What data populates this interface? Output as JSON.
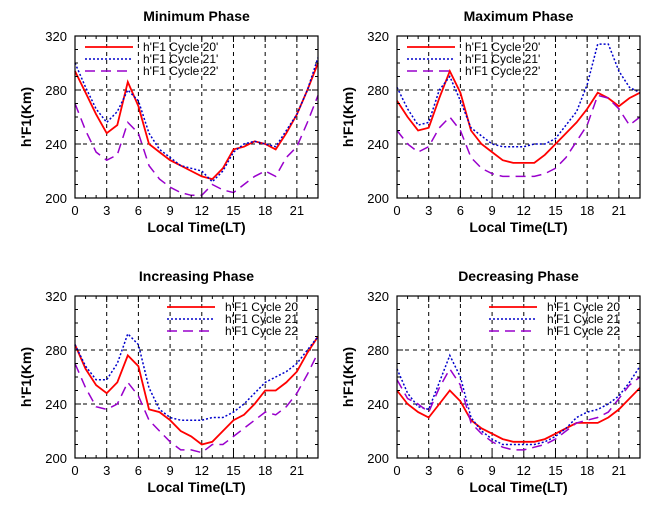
{
  "chart_data": [
    {
      "type": "line",
      "title": "Minimum Phase",
      "xlabel": "Local Time(LT)",
      "ylabel": "h'F1(Km)",
      "xlim": [
        0,
        23
      ],
      "ylim": [
        200,
        320
      ],
      "xticks": [
        0,
        3,
        6,
        9,
        12,
        15,
        18,
        21
      ],
      "yticks": [
        200,
        240,
        280,
        320
      ],
      "grid": true,
      "legend_position": "top-left",
      "x": [
        0,
        1,
        2,
        3,
        4,
        5,
        6,
        7,
        8,
        9,
        10,
        11,
        12,
        13,
        14,
        15,
        16,
        17,
        18,
        19,
        20,
        21,
        22,
        23
      ],
      "series": [
        {
          "name": "h'F1 Cycle 20'",
          "color": "#ff0000",
          "style": "solid",
          "values": [
            294,
            278,
            262,
            248,
            254,
            286,
            268,
            240,
            234,
            228,
            224,
            220,
            216,
            214,
            222,
            236,
            238,
            242,
            240,
            236,
            248,
            262,
            280,
            300
          ]
        },
        {
          "name": "h'F1 Cycle 21'",
          "color": "#0000cc",
          "style": "dotted",
          "values": [
            300,
            282,
            266,
            256,
            264,
            280,
            272,
            248,
            236,
            230,
            224,
            222,
            220,
            212,
            220,
            234,
            240,
            242,
            240,
            238,
            250,
            262,
            280,
            304
          ]
        },
        {
          "name": "h'F1 Cycle 22'",
          "color": "#9900cc",
          "style": "dashed",
          "values": [
            270,
            250,
            234,
            228,
            232,
            256,
            248,
            224,
            214,
            208,
            204,
            202,
            202,
            210,
            206,
            204,
            210,
            216,
            220,
            216,
            230,
            238,
            256,
            276
          ]
        }
      ]
    },
    {
      "type": "line",
      "title": "Maximum Phase",
      "xlabel": "Local Time(LT)",
      "ylabel": "h'F1(Km)",
      "xlim": [
        0,
        23
      ],
      "ylim": [
        200,
        320
      ],
      "xticks": [
        0,
        3,
        6,
        9,
        12,
        15,
        18,
        21
      ],
      "yticks": [
        200,
        240,
        280,
        320
      ],
      "grid": true,
      "legend_position": "top-left",
      "x": [
        0,
        1,
        2,
        3,
        4,
        5,
        6,
        7,
        8,
        9,
        10,
        11,
        12,
        13,
        14,
        15,
        16,
        17,
        18,
        19,
        20,
        21,
        22,
        23
      ],
      "series": [
        {
          "name": "h'F1 Cycle 20'",
          "color": "#ff0000",
          "style": "solid",
          "values": [
            272,
            260,
            250,
            252,
            274,
            294,
            278,
            250,
            240,
            234,
            228,
            226,
            226,
            226,
            232,
            240,
            248,
            256,
            266,
            278,
            274,
            268,
            274,
            278
          ]
        },
        {
          "name": "h'F1 Cycle 21'",
          "color": "#0000cc",
          "style": "dotted",
          "values": [
            282,
            266,
            254,
            256,
            280,
            290,
            272,
            252,
            246,
            240,
            238,
            238,
            238,
            240,
            240,
            244,
            254,
            264,
            284,
            314,
            314,
            294,
            282,
            278
          ]
        },
        {
          "name": "h'F1 Cycle 22'",
          "color": "#9900cc",
          "style": "dashed",
          "values": [
            250,
            240,
            234,
            238,
            252,
            260,
            250,
            230,
            222,
            218,
            216,
            216,
            216,
            216,
            218,
            222,
            230,
            242,
            254,
            276,
            274,
            266,
            254,
            260
          ]
        }
      ]
    },
    {
      "type": "line",
      "title": "Increasing Phase",
      "xlabel": "Local Time(LT)",
      "ylabel": "h'F1(Km)",
      "xlim": [
        0,
        23
      ],
      "ylim": [
        200,
        320
      ],
      "xticks": [
        0,
        3,
        6,
        9,
        12,
        15,
        18,
        21
      ],
      "yticks": [
        200,
        240,
        280,
        320
      ],
      "grid": true,
      "legend_position": "top-right",
      "x": [
        0,
        1,
        2,
        3,
        4,
        5,
        6,
        7,
        8,
        9,
        10,
        11,
        12,
        13,
        14,
        15,
        16,
        17,
        18,
        19,
        20,
        21,
        22,
        23
      ],
      "series": [
        {
          "name": "h'F1 Cycle 20",
          "color": "#ff0000",
          "style": "solid",
          "values": [
            284,
            266,
            254,
            248,
            256,
            276,
            268,
            236,
            234,
            228,
            220,
            216,
            210,
            212,
            220,
            228,
            232,
            240,
            250,
            250,
            256,
            264,
            278,
            290
          ]
        },
        {
          "name": "h'F1 Cycle 21",
          "color": "#0000cc",
          "style": "dotted",
          "values": [
            284,
            268,
            258,
            258,
            270,
            292,
            284,
            252,
            236,
            230,
            228,
            228,
            228,
            230,
            230,
            234,
            240,
            248,
            256,
            260,
            264,
            270,
            280,
            290
          ]
        },
        {
          "name": "h'F1 Cycle 22",
          "color": "#9900cc",
          "style": "dashed",
          "values": [
            270,
            252,
            238,
            236,
            240,
            256,
            246,
            228,
            220,
            212,
            206,
            206,
            204,
            210,
            210,
            216,
            222,
            228,
            234,
            232,
            238,
            248,
            262,
            278
          ]
        }
      ]
    },
    {
      "type": "line",
      "title": "Decreasing Phase",
      "xlabel": "Local Time(LT)",
      "ylabel": "h'F1(Km)",
      "xlim": [
        0,
        23
      ],
      "ylim": [
        200,
        320
      ],
      "xticks": [
        0,
        3,
        6,
        9,
        12,
        15,
        18,
        21
      ],
      "yticks": [
        200,
        240,
        280,
        320
      ],
      "grid": true,
      "legend_position": "top-right",
      "x": [
        0,
        1,
        2,
        3,
        4,
        5,
        6,
        7,
        8,
        9,
        10,
        11,
        12,
        13,
        14,
        15,
        16,
        17,
        18,
        19,
        20,
        21,
        22,
        23
      ],
      "series": [
        {
          "name": "h'F1 Cycle 20",
          "color": "#ff0000",
          "style": "solid",
          "values": [
            250,
            240,
            234,
            230,
            240,
            250,
            242,
            228,
            222,
            218,
            214,
            212,
            212,
            212,
            214,
            218,
            222,
            226,
            226,
            226,
            230,
            236,
            244,
            252
          ]
        },
        {
          "name": "h'F1 Cycle 21",
          "color": "#0000cc",
          "style": "dotted",
          "values": [
            266,
            248,
            238,
            236,
            256,
            276,
            260,
            230,
            220,
            214,
            210,
            210,
            210,
            210,
            212,
            216,
            222,
            230,
            234,
            236,
            240,
            246,
            256,
            268
          ]
        },
        {
          "name": "h'F1 Cycle 22",
          "color": "#9900cc",
          "style": "dashed",
          "values": [
            258,
            244,
            240,
            234,
            252,
            266,
            254,
            226,
            218,
            212,
            208,
            206,
            206,
            208,
            210,
            214,
            220,
            226,
            228,
            230,
            234,
            244,
            254,
            260
          ]
        }
      ]
    }
  ]
}
